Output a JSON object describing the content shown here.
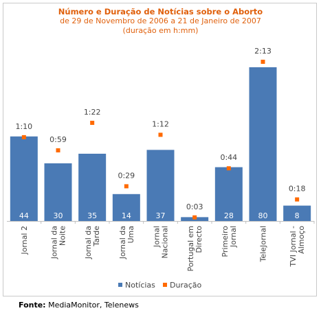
{
  "chart_data": {
    "type": "bar",
    "title": "Número e Duração de Notícias sobre o Aborto",
    "subtitle_lines": [
      "de 29 de Novembro de 2006 a 21 de Janeiro de 2007",
      "(duração em h:mm)"
    ],
    "categories": [
      [
        "Jornal 2"
      ],
      [
        "Jornal da",
        "Noite"
      ],
      [
        "Jornal da",
        "Tarde"
      ],
      [
        "Jornal da",
        "Uma"
      ],
      [
        "Jornal",
        "Nacional"
      ],
      [
        "Portugal em",
        "Directo"
      ],
      [
        "Primeiro",
        "Jornal"
      ],
      [
        "TeleJornal"
      ],
      [
        "TVI Jornal -",
        "Almoço"
      ]
    ],
    "series": [
      {
        "name": "Notícias",
        "type": "bar",
        "color": "#4a7ab5",
        "values": [
          44,
          30,
          35,
          14,
          37,
          2,
          28,
          80,
          8
        ]
      },
      {
        "name": "Duração",
        "type": "marker",
        "color": "#ff6a00",
        "values_minutes": [
          70,
          59,
          82,
          29,
          72,
          3,
          44,
          133,
          18
        ],
        "labels": [
          "1:10",
          "0:59",
          "1:22",
          "0:29",
          "1:12",
          "0:03",
          "0:44",
          "2:13",
          "0:18"
        ]
      }
    ],
    "legend": {
      "position": "bottom"
    },
    "grid": false
  },
  "source": {
    "label": "Fonte:",
    "text": " MediaMonitor, Telenews"
  }
}
